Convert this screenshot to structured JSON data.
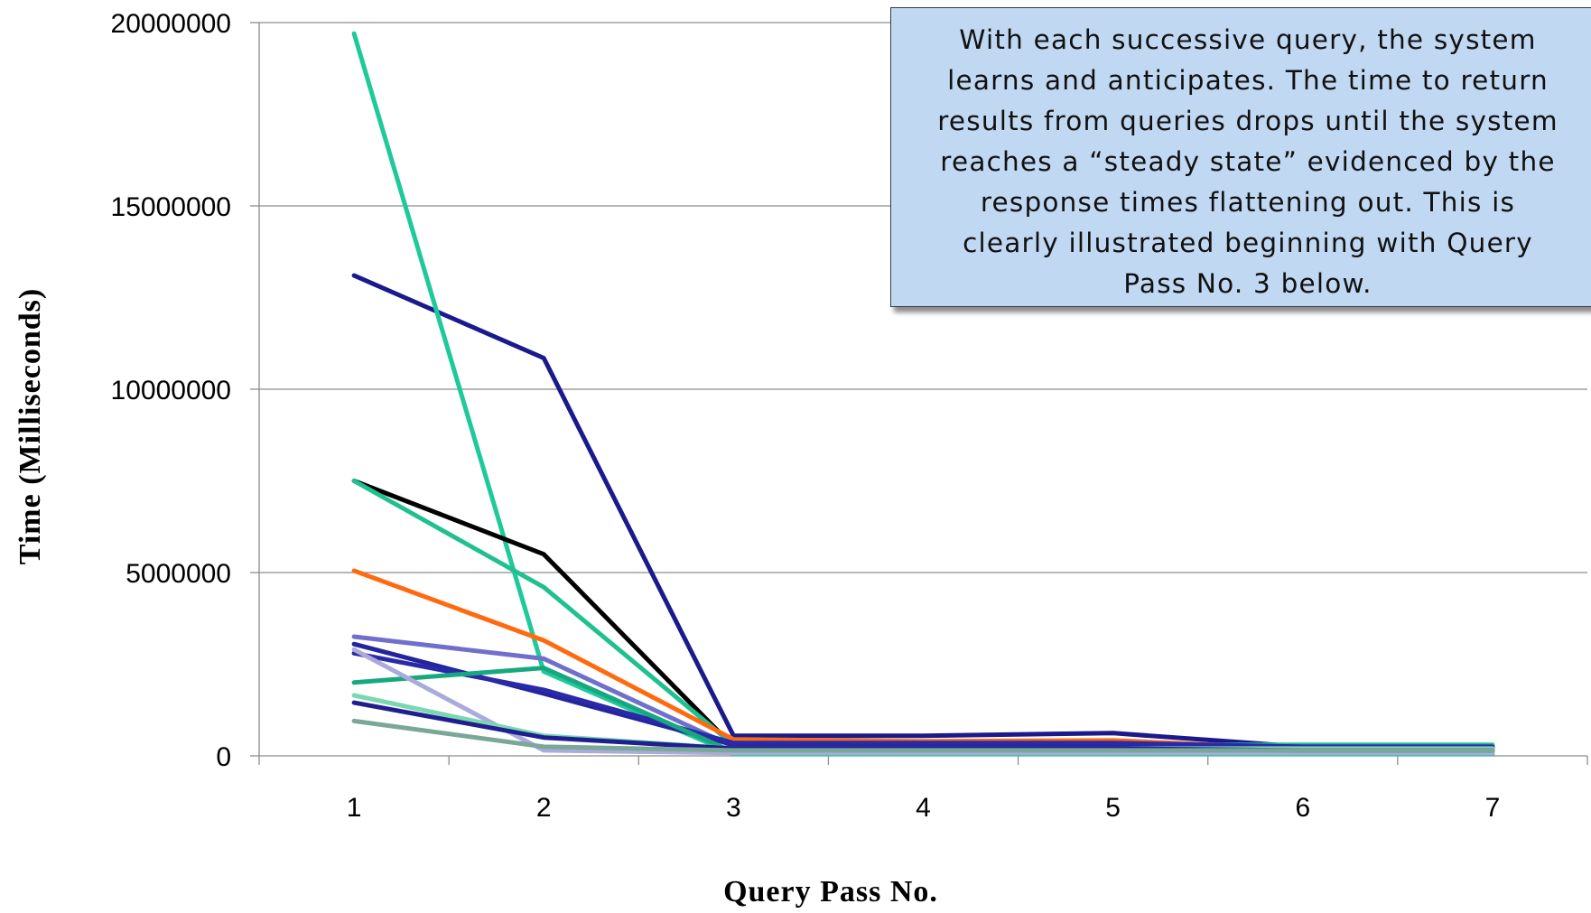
{
  "chart_data": {
    "type": "line",
    "xlabel": "Query Pass No.",
    "ylabel": "Time (Milliseconds)",
    "ylim": [
      0,
      20000000
    ],
    "yticks": [
      "0",
      "5000000",
      "10000000",
      "15000000",
      "20000000"
    ],
    "x": [
      "1",
      "2",
      "3",
      "4",
      "5",
      "6",
      "7"
    ],
    "grid": "horizontal",
    "annotation_lines": [
      "With each successive query, the system",
      "learns and anticipates.  The time to return",
      "results from queries drops until the system",
      "reaches a “steady state” evidenced by the",
      "response times flattening out.  This is",
      "clearly illustrated beginning with Query",
      "Pass No. 3 below."
    ],
    "series": [
      {
        "color": "#1a1a8c",
        "values": [
          13100000,
          10850000,
          550000,
          550000,
          620000,
          250000,
          250000
        ]
      },
      {
        "color": "#1ec99a",
        "values": [
          19700000,
          2300000,
          50000,
          50000,
          50000,
          50000,
          50000
        ]
      },
      {
        "color": "#000000",
        "values": [
          7500000,
          5500000,
          250000,
          200000,
          200000,
          150000,
          150000
        ]
      },
      {
        "color": "#20c090",
        "values": [
          7500000,
          4600000,
          300000,
          300000,
          300000,
          300000,
          300000
        ]
      },
      {
        "color": "#ff6a10",
        "values": [
          5050000,
          3150000,
          450000,
          400000,
          420000,
          200000,
          200000
        ]
      },
      {
        "color": "#7070cc",
        "values": [
          3250000,
          2650000,
          250000,
          250000,
          250000,
          250000,
          250000
        ]
      },
      {
        "color": "#2424a0",
        "values": [
          3050000,
          1700000,
          300000,
          300000,
          300000,
          200000,
          200000
        ]
      },
      {
        "color": "#2a2aa8",
        "values": [
          2800000,
          1800000,
          350000,
          350000,
          350000,
          250000,
          250000
        ]
      },
      {
        "color": "#18a880",
        "values": [
          2000000,
          2400000,
          100000,
          100000,
          100000,
          100000,
          100000
        ]
      },
      {
        "color": "#aaaadd",
        "values": [
          2900000,
          150000,
          80000,
          80000,
          80000,
          80000,
          80000
        ]
      },
      {
        "color": "#7ad8b0",
        "values": [
          1650000,
          550000,
          200000,
          200000,
          200000,
          200000,
          200000
        ]
      },
      {
        "color": "#1f1f90",
        "values": [
          1450000,
          500000,
          200000,
          200000,
          200000,
          150000,
          150000
        ]
      },
      {
        "color": "#7aa898",
        "values": [
          950000,
          250000,
          150000,
          150000,
          150000,
          150000,
          150000
        ]
      }
    ]
  }
}
